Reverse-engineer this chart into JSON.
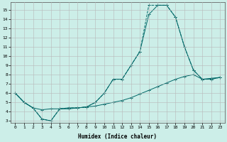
{
  "xlabel": "Humidex (Indice chaleur)",
  "background_color": "#cceee8",
  "grid_color": "#b8b8b8",
  "line_color": "#006868",
  "xlim": [
    -0.5,
    23.5
  ],
  "ylim": [
    2.8,
    15.8
  ],
  "x_ticks": [
    0,
    1,
    2,
    3,
    4,
    5,
    6,
    7,
    8,
    9,
    10,
    11,
    12,
    13,
    14,
    15,
    16,
    17,
    18,
    19,
    20,
    21,
    22,
    23
  ],
  "y_ticks": [
    3,
    4,
    5,
    6,
    7,
    8,
    9,
    10,
    11,
    12,
    13,
    14,
    15
  ],
  "line_a_x": [
    0,
    1,
    2,
    3,
    4,
    5,
    6,
    7,
    8,
    9,
    10,
    11,
    12,
    13,
    14,
    15,
    16,
    17,
    18,
    19,
    20,
    21,
    22,
    23
  ],
  "line_a_y": [
    6.0,
    5.0,
    4.4,
    4.2,
    4.3,
    4.3,
    4.3,
    4.4,
    4.5,
    4.6,
    4.8,
    5.0,
    5.2,
    5.5,
    5.9,
    6.3,
    6.7,
    7.1,
    7.5,
    7.8,
    8.0,
    7.5,
    7.6,
    7.7
  ],
  "line_b_x": [
    0,
    1,
    2,
    3,
    4,
    5,
    6,
    7,
    8,
    9,
    10,
    11,
    12,
    13,
    14,
    15,
    16,
    17,
    18,
    19,
    20,
    21,
    22,
    23
  ],
  "line_b_y": [
    6.0,
    5.0,
    4.4,
    3.2,
    3.0,
    4.3,
    4.4,
    4.4,
    4.5,
    5.0,
    6.0,
    7.5,
    7.5,
    9.0,
    10.5,
    14.5,
    15.5,
    15.5,
    14.2,
    11.0,
    8.5,
    7.5,
    7.5,
    7.7
  ],
  "line_c_x": [
    0,
    1,
    2,
    3,
    4,
    5,
    6,
    7,
    8,
    9,
    10,
    11,
    12,
    13,
    14,
    15,
    16,
    17,
    18,
    19,
    20,
    21,
    22,
    23
  ],
  "line_c_y": [
    6.0,
    5.0,
    4.4,
    3.2,
    3.0,
    4.3,
    4.4,
    4.4,
    4.5,
    5.0,
    6.0,
    7.5,
    7.5,
    9.0,
    10.5,
    15.5,
    15.5,
    15.5,
    14.2,
    11.0,
    8.5,
    7.5,
    7.5,
    7.7
  ]
}
